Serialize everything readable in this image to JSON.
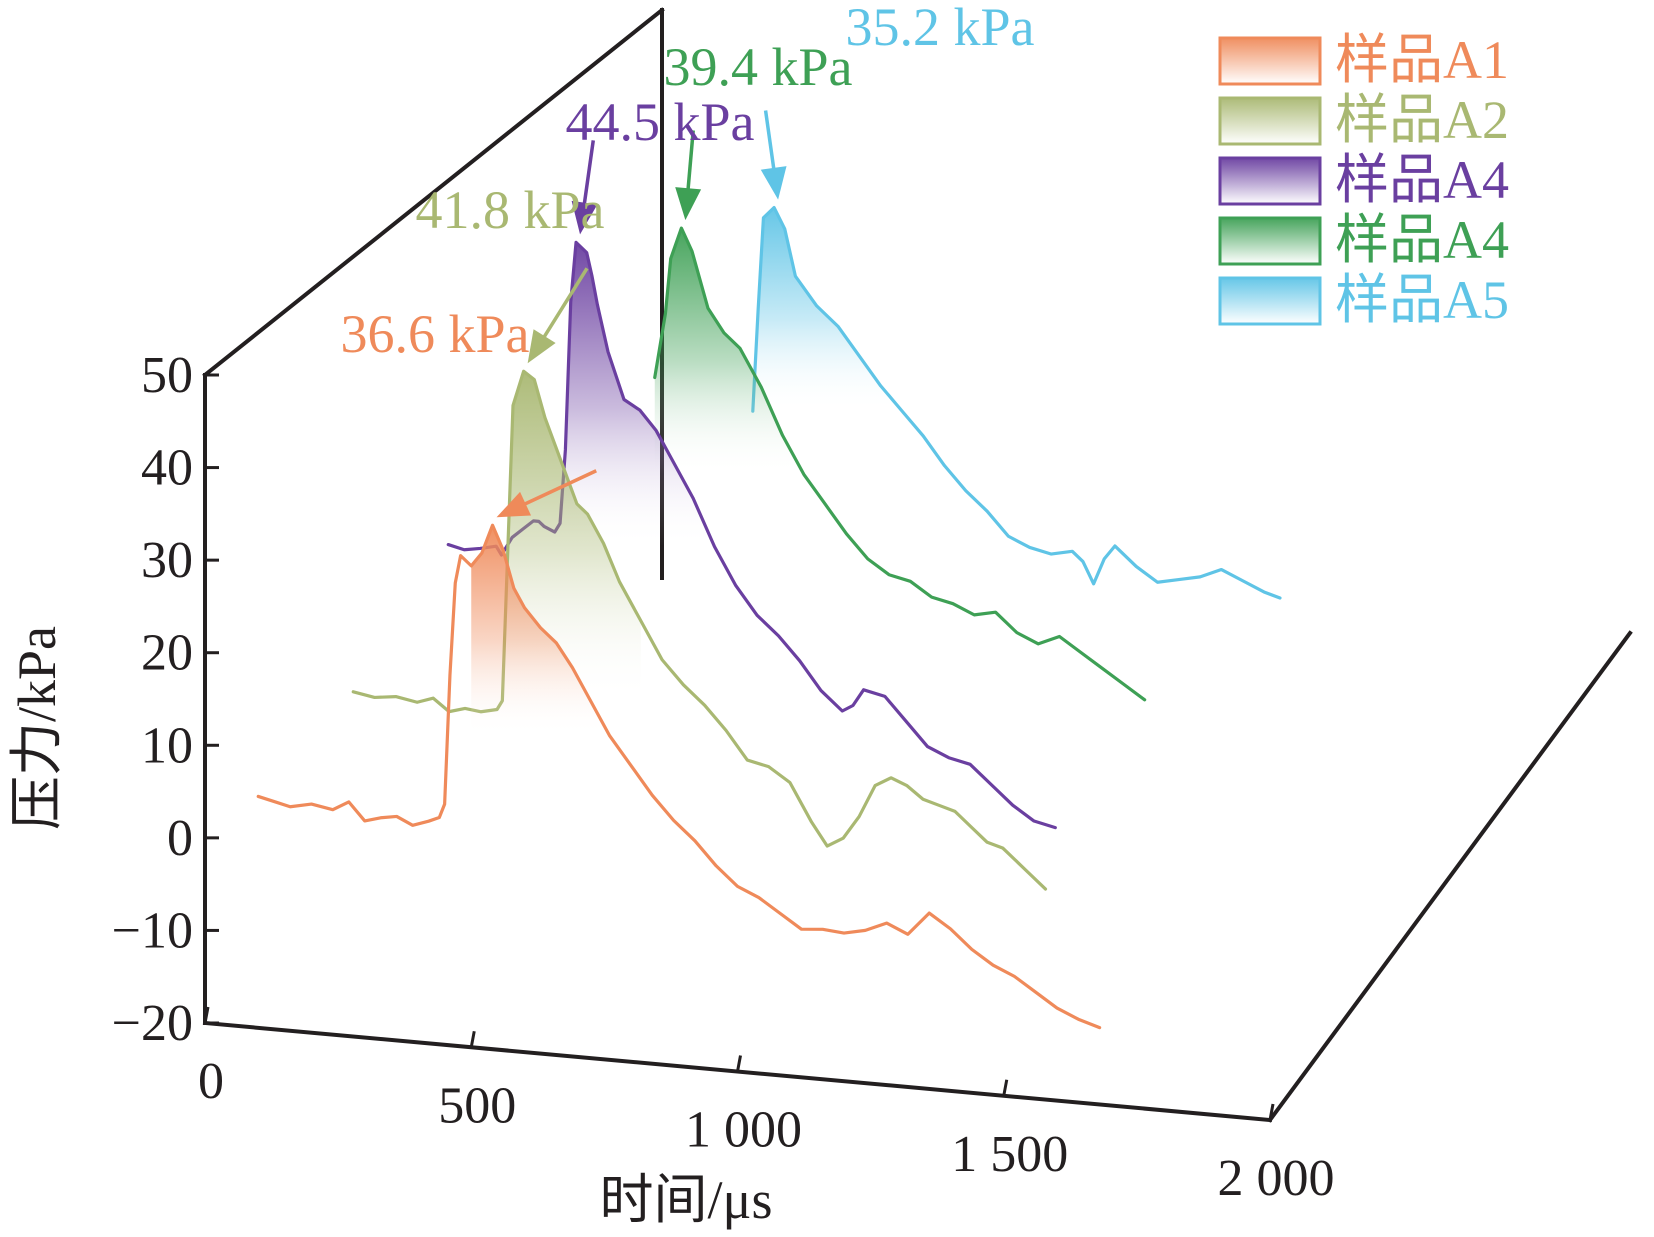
{
  "chart_data": {
    "type": "line",
    "subtype": "3d-waterfall",
    "xlabel": "时间/μs",
    "ylabel": "压力/kPa",
    "xlim": [
      0,
      2000
    ],
    "ylim": [
      -20,
      50
    ],
    "x_ticks": [
      {
        "value": 0,
        "label": "0"
      },
      {
        "value": 500,
        "label": "500"
      },
      {
        "value": 1000,
        "label": "1 000"
      },
      {
        "value": 1500,
        "label": "1 500"
      },
      {
        "value": 2000,
        "label": "2 000"
      }
    ],
    "y_ticks": [
      {
        "value": 50,
        "label": "50"
      },
      {
        "value": 40,
        "label": "40"
      },
      {
        "value": 30,
        "label": "30"
      },
      {
        "value": 20,
        "label": "20"
      },
      {
        "value": 10,
        "label": "10"
      },
      {
        "value": 0,
        "label": "0"
      },
      {
        "value": -10,
        "label": "−10"
      },
      {
        "value": -20,
        "label": "−20"
      }
    ],
    "grid": false,
    "legend": "top-right",
    "series": [
      {
        "name": "样品A1",
        "color": "#ef8a5a",
        "peak": 36.6,
        "peak_label": "36.6 kPa",
        "fill": true,
        "points": [
          [
            100,
            5
          ],
          [
            130,
            4.6
          ],
          [
            160,
            4.2
          ],
          [
            200,
            4.7
          ],
          [
            240,
            4.3
          ],
          [
            270,
            5.3
          ],
          [
            300,
            3.4
          ],
          [
            330,
            3.9
          ],
          [
            360,
            4.2
          ],
          [
            390,
            3.4
          ],
          [
            420,
            4
          ],
          [
            440,
            4.5
          ],
          [
            450,
            6
          ],
          [
            460,
            20
          ],
          [
            470,
            30
          ],
          [
            480,
            33
          ],
          [
            500,
            32
          ],
          [
            520,
            33.5
          ],
          [
            540,
            36.6
          ],
          [
            560,
            34
          ],
          [
            580,
            30
          ],
          [
            600,
            28
          ],
          [
            630,
            26
          ],
          [
            660,
            24.5
          ],
          [
            690,
            22
          ],
          [
            720,
            19
          ],
          [
            760,
            15
          ],
          [
            800,
            12
          ],
          [
            840,
            9
          ],
          [
            880,
            6.5
          ],
          [
            920,
            4.5
          ],
          [
            960,
            2
          ],
          [
            1000,
            0
          ],
          [
            1040,
            -1
          ],
          [
            1080,
            -2.5
          ],
          [
            1120,
            -4
          ],
          [
            1160,
            -3.8
          ],
          [
            1200,
            -4
          ],
          [
            1240,
            -3.5
          ],
          [
            1280,
            -2.5
          ],
          [
            1320,
            -3.5
          ],
          [
            1360,
            -1
          ],
          [
            1400,
            -2.5
          ],
          [
            1440,
            -4.5
          ],
          [
            1480,
            -6
          ],
          [
            1520,
            -7
          ],
          [
            1560,
            -8.5
          ],
          [
            1600,
            -10
          ],
          [
            1640,
            -11
          ],
          [
            1680,
            -11.7
          ]
        ]
      },
      {
        "name": "样品A2",
        "color": "#a9b872",
        "peak": 41.8,
        "peak_label": "41.8 kPa",
        "fill": true,
        "points": [
          [
            100,
            5.5
          ],
          [
            140,
            5.1
          ],
          [
            180,
            5.4
          ],
          [
            220,
            5
          ],
          [
            250,
            5.6
          ],
          [
            280,
            4.3
          ],
          [
            310,
            4.8
          ],
          [
            340,
            4.6
          ],
          [
            370,
            5
          ],
          [
            380,
            6
          ],
          [
            390,
            22
          ],
          [
            400,
            38
          ],
          [
            420,
            41.8
          ],
          [
            440,
            41
          ],
          [
            460,
            37
          ],
          [
            480,
            34
          ],
          [
            500,
            31
          ],
          [
            520,
            28
          ],
          [
            540,
            27
          ],
          [
            570,
            24
          ],
          [
            600,
            20
          ],
          [
            640,
            16
          ],
          [
            680,
            12
          ],
          [
            720,
            9.5
          ],
          [
            760,
            7.5
          ],
          [
            800,
            5
          ],
          [
            840,
            2
          ],
          [
            880,
            1.5
          ],
          [
            920,
            0
          ],
          [
            960,
            -4
          ],
          [
            990,
            -6.5
          ],
          [
            1020,
            -5.5
          ],
          [
            1050,
            -3
          ],
          [
            1080,
            0.5
          ],
          [
            1110,
            1.5
          ],
          [
            1140,
            0.8
          ],
          [
            1170,
            -0.5
          ],
          [
            1200,
            -1
          ],
          [
            1230,
            -1.5
          ],
          [
            1260,
            -3
          ],
          [
            1290,
            -4.5
          ],
          [
            1320,
            -5
          ],
          [
            1360,
            -7
          ],
          [
            1400,
            -9
          ]
        ]
      },
      {
        "name": "样品A4",
        "color": "#6a3fa0",
        "peak": 44.5,
        "peak_label": "44.5 kPa",
        "fill": true,
        "points": [
          [
            100,
            10.6
          ],
          [
            130,
            10.2
          ],
          [
            160,
            10.5
          ],
          [
            190,
            10.9
          ],
          [
            200,
            10
          ],
          [
            220,
            12
          ],
          [
            240,
            13
          ],
          [
            260,
            14
          ],
          [
            270,
            14
          ],
          [
            280,
            13.5
          ],
          [
            300,
            13
          ],
          [
            310,
            14
          ],
          [
            320,
            22
          ],
          [
            330,
            38
          ],
          [
            340,
            44.5
          ],
          [
            360,
            43.5
          ],
          [
            370,
            41
          ],
          [
            380,
            38
          ],
          [
            400,
            33
          ],
          [
            430,
            28
          ],
          [
            460,
            27
          ],
          [
            490,
            25
          ],
          [
            520,
            22
          ],
          [
            560,
            18
          ],
          [
            600,
            13
          ],
          [
            640,
            9
          ],
          [
            680,
            6
          ],
          [
            720,
            4
          ],
          [
            760,
            1.5
          ],
          [
            800,
            -1.5
          ],
          [
            840,
            -3.5
          ],
          [
            860,
            -2.8
          ],
          [
            880,
            -1
          ],
          [
            920,
            -1.5
          ],
          [
            960,
            -4
          ],
          [
            1000,
            -6.5
          ],
          [
            1040,
            -7.5
          ],
          [
            1080,
            -8
          ],
          [
            1120,
            -10
          ],
          [
            1160,
            -12
          ],
          [
            1200,
            -13.5
          ],
          [
            1240,
            -14
          ]
        ]
      },
      {
        "name": "样品A4",
        "color": "#3ea055",
        "peak": 39.4,
        "peak_label": "39.4 kPa",
        "fill": true,
        "points": [
          [
            300,
            23
          ],
          [
            320,
            30
          ],
          [
            330,
            36
          ],
          [
            350,
            39.4
          ],
          [
            370,
            37
          ],
          [
            380,
            35
          ],
          [
            400,
            31
          ],
          [
            430,
            28.5
          ],
          [
            460,
            27
          ],
          [
            500,
            23
          ],
          [
            540,
            18
          ],
          [
            580,
            14
          ],
          [
            620,
            11
          ],
          [
            660,
            8
          ],
          [
            700,
            5.5
          ],
          [
            740,
            4
          ],
          [
            780,
            3.5
          ],
          [
            820,
            2
          ],
          [
            860,
            1.5
          ],
          [
            900,
            0.5
          ],
          [
            940,
            1
          ],
          [
            980,
            -1
          ],
          [
            1020,
            -2
          ],
          [
            1060,
            -1
          ],
          [
            1100,
            -2.5
          ],
          [
            1140,
            -4
          ],
          [
            1180,
            -5.5
          ],
          [
            1220,
            -7
          ]
        ]
      },
      {
        "name": "样品A5",
        "color": "#5fc4e6",
        "peak": 35.2,
        "peak_label": "35.2 kPa",
        "fill": true,
        "points": [
          [
            240,
            13
          ],
          [
            250,
            24
          ],
          [
            260,
            34
          ],
          [
            280,
            35.2
          ],
          [
            300,
            33
          ],
          [
            320,
            28
          ],
          [
            360,
            25
          ],
          [
            400,
            23
          ],
          [
            440,
            20
          ],
          [
            480,
            17
          ],
          [
            520,
            14.5
          ],
          [
            560,
            12
          ],
          [
            600,
            9
          ],
          [
            640,
            6.5
          ],
          [
            680,
            4.5
          ],
          [
            720,
            2
          ],
          [
            760,
            1
          ],
          [
            800,
            0.5
          ],
          [
            840,
            1
          ],
          [
            860,
            0
          ],
          [
            880,
            -2.3
          ],
          [
            900,
            0.5
          ],
          [
            920,
            2
          ],
          [
            960,
            0
          ],
          [
            1000,
            -1.5
          ],
          [
            1040,
            -1
          ],
          [
            1080,
            -0.5
          ],
          [
            1120,
            0.5
          ],
          [
            1160,
            -0.5
          ],
          [
            1200,
            -1.5
          ],
          [
            1230,
            -2
          ]
        ]
      }
    ]
  }
}
